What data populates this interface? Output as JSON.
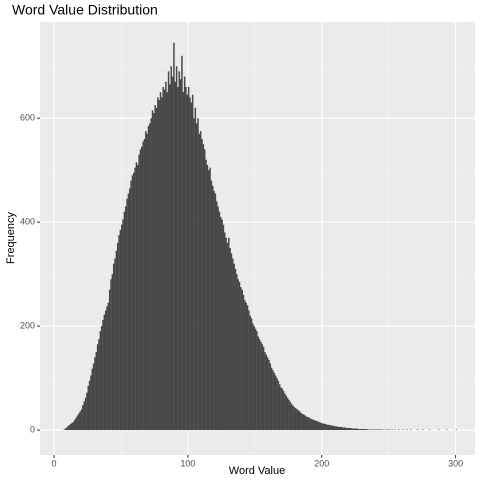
{
  "chart_data": {
    "type": "histogram",
    "title": "Word Value Distribution",
    "x_label": "Word Value",
    "y_label": "Frequency",
    "bins": [
      5,
      6,
      7,
      8,
      9,
      10,
      11,
      12,
      13,
      14,
      15,
      16,
      17,
      18,
      19,
      20,
      21,
      22,
      23,
      24,
      25,
      26,
      27,
      28,
      29,
      30,
      31,
      32,
      33,
      34,
      35,
      36,
      37,
      38,
      39,
      40,
      41,
      42,
      43,
      44,
      45,
      46,
      47,
      48,
      49,
      50,
      51,
      52,
      53,
      54,
      55,
      56,
      57,
      58,
      59,
      60,
      61,
      62,
      63,
      64,
      65,
      66,
      67,
      68,
      69,
      70,
      71,
      72,
      73,
      74,
      75,
      76,
      77,
      78,
      79,
      80,
      81,
      82,
      83,
      84,
      85,
      86,
      87,
      88,
      89,
      90,
      91,
      92,
      93,
      94,
      95,
      96,
      97,
      98,
      99,
      100,
      101,
      102,
      103,
      104,
      105,
      106,
      107,
      108,
      109,
      110,
      111,
      112,
      113,
      114,
      115,
      116,
      117,
      118,
      119,
      120,
      121,
      122,
      123,
      124,
      125,
      126,
      127,
      128,
      129,
      130,
      131,
      132,
      133,
      134,
      135,
      136,
      137,
      138,
      139,
      140,
      141,
      142,
      143,
      144,
      145,
      146,
      147,
      148,
      149,
      150,
      151,
      152,
      153,
      154,
      155,
      156,
      157,
      158,
      159,
      160,
      161,
      162,
      163,
      164,
      165,
      166,
      167,
      168,
      169,
      170,
      171,
      172,
      173,
      174,
      175,
      176,
      177,
      178,
      179,
      180,
      181,
      182,
      183,
      184,
      185,
      186,
      187,
      188,
      189,
      190,
      191,
      192,
      193,
      194,
      195,
      196,
      197,
      198,
      199,
      200,
      201,
      202,
      203,
      204,
      205,
      206,
      207,
      208,
      209,
      210,
      211,
      212,
      213,
      214,
      215,
      216,
      217,
      218,
      219,
      220,
      221,
      222,
      223,
      224,
      225,
      226,
      227,
      228,
      229,
      230,
      231,
      232,
      233,
      234,
      235,
      236,
      237,
      238,
      239,
      240,
      241,
      242,
      243,
      244,
      245,
      246,
      247,
      248,
      249,
      250,
      251,
      252,
      253,
      254,
      255,
      256,
      257,
      258,
      259,
      260,
      261,
      262,
      263,
      264,
      265,
      266,
      267,
      268,
      269,
      270,
      271,
      272,
      273,
      274,
      275,
      276,
      277,
      278,
      279,
      280,
      281,
      282,
      283,
      284,
      285,
      286,
      287,
      288,
      289,
      290,
      291,
      292,
      293,
      294,
      295,
      296,
      297,
      298,
      299,
      300,
      301
    ],
    "values": [
      0,
      0,
      1,
      3,
      5,
      8,
      10,
      12,
      14,
      16,
      20,
      24,
      28,
      32,
      36,
      40,
      48,
      55,
      62,
      72,
      85,
      95,
      105,
      118,
      128,
      140,
      150,
      165,
      175,
      190,
      200,
      212,
      222,
      230,
      238,
      245,
      270,
      290,
      300,
      320,
      330,
      345,
      360,
      375,
      385,
      395,
      405,
      420,
      430,
      445,
      455,
      465,
      480,
      490,
      495,
      505,
      515,
      510,
      530,
      540,
      545,
      555,
      560,
      575,
      570,
      585,
      590,
      600,
      615,
      610,
      625,
      620,
      640,
      635,
      650,
      640,
      660,
      655,
      670,
      650,
      690,
      665,
      700,
      680,
      745,
      670,
      700,
      660,
      690,
      675,
      720,
      650,
      680,
      660,
      645,
      660,
      640,
      630,
      645,
      600,
      620,
      590,
      600,
      570,
      575,
      560,
      550,
      540,
      520,
      510,
      500,
      505,
      480,
      470,
      460,
      455,
      440,
      430,
      420,
      410,
      405,
      395,
      380,
      370,
      360,
      370,
      350,
      340,
      330,
      320,
      310,
      300,
      290,
      285,
      275,
      270,
      260,
      250,
      245,
      240,
      230,
      220,
      215,
      205,
      200,
      195,
      190,
      180,
      175,
      170,
      165,
      160,
      150,
      145,
      140,
      135,
      128,
      120,
      115,
      110,
      105,
      100,
      95,
      88,
      82,
      80,
      75,
      70,
      66,
      62,
      58,
      54,
      50,
      47,
      44,
      42,
      40,
      38,
      36,
      33,
      31,
      30,
      28,
      26,
      25,
      24,
      22,
      21,
      20,
      19,
      18,
      17,
      16,
      15,
      14,
      13,
      12,
      12,
      11,
      10,
      10,
      9,
      9,
      8,
      8,
      7,
      7,
      6,
      6,
      6,
      5,
      5,
      5,
      4,
      4,
      4,
      4,
      3,
      3,
      3,
      3,
      3,
      2,
      2,
      2,
      2,
      2,
      2,
      2,
      1,
      1,
      1,
      1,
      1,
      1,
      1,
      1,
      1,
      1,
      1,
      1,
      0,
      1,
      0,
      1,
      1,
      0,
      1,
      0,
      1,
      0,
      0,
      1,
      0,
      0,
      1,
      0,
      0,
      1,
      0,
      0,
      1,
      0,
      0,
      0,
      0,
      1,
      0,
      0,
      0,
      1,
      0,
      0,
      0,
      0,
      1,
      0,
      0,
      0,
      0,
      0,
      0,
      1,
      0,
      0,
      0,
      0,
      0,
      1,
      0,
      0,
      0,
      0,
      0,
      0,
      1
    ],
    "color": "#474747",
    "xlim": [
      -10.5,
      314.5
    ],
    "xticks": [
      0,
      100,
      200,
      300
    ],
    "xminor": [
      50,
      150,
      250
    ],
    "ylim": [
      -48,
      785
    ],
    "yticks": [
      0,
      200,
      400,
      600
    ],
    "yminor": [
      100,
      300,
      500,
      700
    ],
    "grid": true
  }
}
